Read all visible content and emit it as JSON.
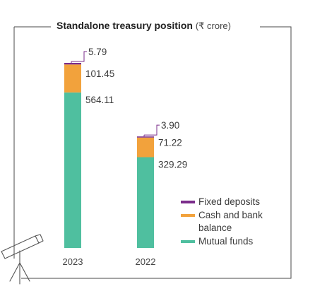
{
  "title": "Standalone treasury position",
  "title_unit": "(₹ crore)",
  "colors": {
    "frame": "#4a4a4a",
    "fixed_deposits": "#7b2d8b",
    "cash": "#f2a23c",
    "mutual_funds": "#4fbf9f",
    "callout": "#7b2d8b"
  },
  "icon": "telescope-icon",
  "chart_data": {
    "type": "bar",
    "stacked": true,
    "categories": [
      "2023",
      "2022"
    ],
    "series": [
      {
        "name": "Mutual funds",
        "values": [
          564.11,
          329.29
        ],
        "labels": [
          "564.11",
          "329.29"
        ],
        "color": "#4fbf9f"
      },
      {
        "name": "Cash and bank balance",
        "values": [
          101.45,
          71.22
        ],
        "labels": [
          "101.45",
          "71.22"
        ],
        "color": "#f2a23c"
      },
      {
        "name": "Fixed deposits",
        "values": [
          5.79,
          3.9
        ],
        "labels": [
          "5.79",
          "3.90"
        ],
        "color": "#7b2d8b"
      }
    ],
    "legend": [
      {
        "label_lines": [
          "Fixed deposits"
        ],
        "color": "#7b2d8b"
      },
      {
        "label_lines": [
          "Cash and bank",
          "balance"
        ],
        "color": "#f2a23c"
      },
      {
        "label_lines": [
          "Mutual funds"
        ],
        "color": "#4fbf9f"
      }
    ],
    "legend_position": "right",
    "ylim": [
      0,
      671.35
    ],
    "grid": false,
    "xlabel": "",
    "ylabel": ""
  }
}
